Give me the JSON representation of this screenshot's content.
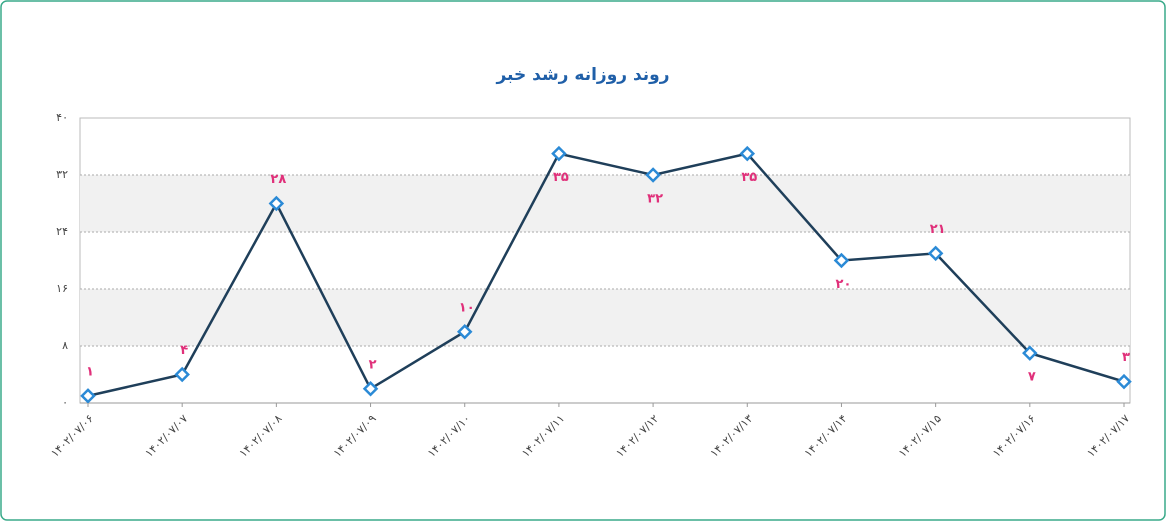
{
  "chart_data": {
    "type": "line",
    "title": "روند روزانه رشد خبر",
    "categories": [
      "۱۴۰۲/۰۷/۰۶",
      "۱۴۰۲/۰۷/۰۷",
      "۱۴۰۲/۰۷/۰۸",
      "۱۴۰۲/۰۷/۰۹",
      "۱۴۰۲/۰۷/۱۰",
      "۱۴۰۲/۰۷/۱۱",
      "۱۴۰۲/۰۷/۱۲",
      "۱۴۰۲/۰۷/۱۳",
      "۱۴۰۲/۰۷/۱۴",
      "۱۴۰۲/۰۷/۱۵",
      "۱۴۰۲/۰۷/۱۶",
      "۱۴۰۲/۰۷/۱۷"
    ],
    "values": [
      1,
      4,
      28,
      2,
      10,
      35,
      32,
      35,
      20,
      21,
      7,
      3
    ],
    "value_labels": [
      "۱",
      "۴",
      "۲۸",
      "۲",
      "۱۰",
      "۳۵",
      "۳۲",
      "۳۵",
      "۲۰",
      "۲۱",
      "۷",
      "۳"
    ],
    "color": "#1f3f5a",
    "marker_color": "#2b8ad6",
    "label_color": "#e0307a",
    "ylim": [
      0,
      40
    ],
    "yticks": [
      {
        "value": 0,
        "label": "۰"
      },
      {
        "value": 8,
        "label": "۸"
      },
      {
        "value": 16,
        "label": "۱۶"
      },
      {
        "value": 24,
        "label": "۲۴"
      },
      {
        "value": 32,
        "label": "۳۲"
      },
      {
        "value": 40,
        "label": "۴۰"
      }
    ],
    "grid": true
  }
}
